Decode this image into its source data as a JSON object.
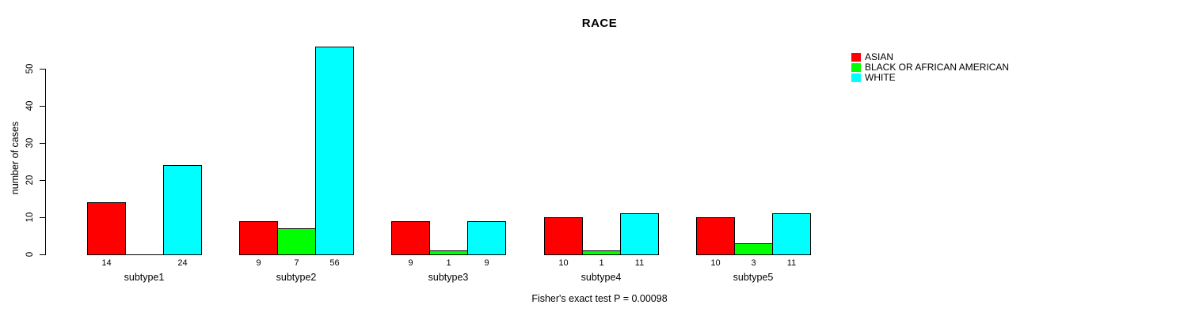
{
  "chart_data": {
    "type": "bar",
    "title": "RACE",
    "ylabel": "number of cases",
    "xlabel": "",
    "annotation": "Fisher's exact test P = 0.00098",
    "ylim": [
      0,
      56
    ],
    "yticks": [
      "0",
      "10",
      "20",
      "30",
      "40",
      "50"
    ],
    "ytick_values": [
      0,
      10,
      20,
      30,
      40,
      50
    ],
    "grid": false,
    "legend_position": "top-right",
    "categories": [
      "subtype1",
      "subtype2",
      "subtype3",
      "subtype4",
      "subtype5"
    ],
    "series": [
      {
        "name": "ASIAN",
        "color": "#ff0000",
        "values": [
          14,
          9,
          9,
          10,
          10
        ]
      },
      {
        "name": "BLACK OR AFRICAN AMERICAN",
        "color": "#00ff00",
        "values": [
          0,
          7,
          1,
          1,
          3
        ]
      },
      {
        "name": "WHITE",
        "color": "#00ffff",
        "values": [
          24,
          56,
          9,
          11,
          11
        ]
      }
    ],
    "bar_labels": [
      [
        "14",
        "",
        "24"
      ],
      [
        "9",
        "7",
        "56"
      ],
      [
        "9",
        "1",
        "9"
      ],
      [
        "10",
        "1",
        "11"
      ],
      [
        "10",
        "3",
        "11"
      ]
    ]
  },
  "legend": {
    "entries": [
      {
        "label": "ASIAN",
        "color": "#ff0000"
      },
      {
        "label": "BLACK OR AFRICAN AMERICAN",
        "color": "#00ff00"
      },
      {
        "label": "WHITE",
        "color": "#00ffff"
      }
    ]
  },
  "colors": {
    "background": "#ffffff",
    "axis": "#000000",
    "text": "#000000"
  }
}
